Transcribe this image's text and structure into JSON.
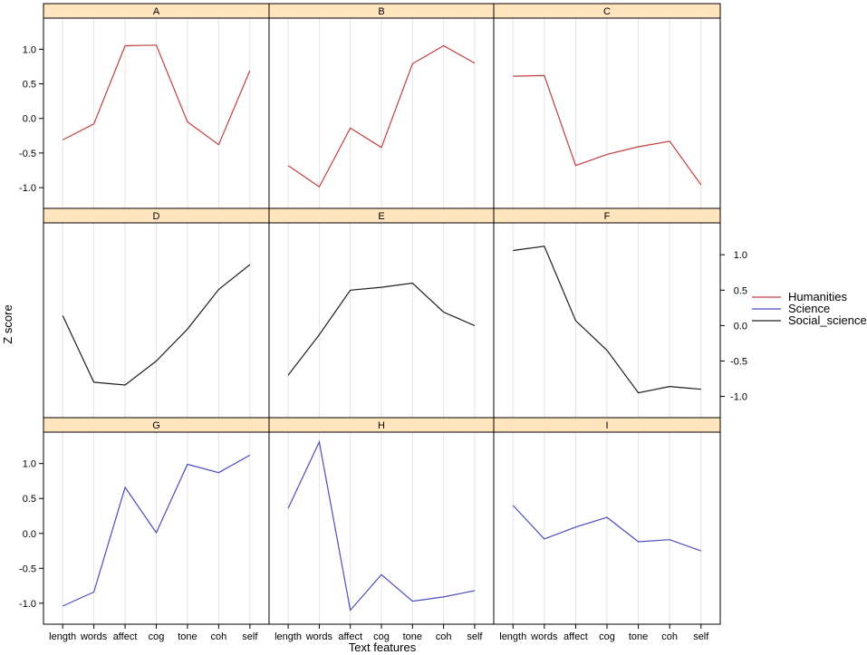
{
  "chart_data": {
    "type": "line",
    "xlabel": "Text features",
    "ylabel": "Z score",
    "categories": [
      "length",
      "words",
      "affect",
      "cog",
      "tone",
      "coh",
      "self"
    ],
    "ylim": [
      -1.3,
      1.45
    ],
    "yticks": [
      -1.0,
      -0.5,
      0.0,
      0.5,
      1.0
    ],
    "ytick_labels": [
      "-1.0",
      "-0.5",
      "0.0",
      "0.5",
      "1.0"
    ],
    "grid": "vertical",
    "legend": {
      "position": "right",
      "entries": [
        {
          "name": "Humanities",
          "color": "#c2403f"
        },
        {
          "name": "Science",
          "color": "#4c4cc0"
        },
        {
          "name": "Social_science",
          "color": "#202020"
        }
      ]
    },
    "colors": {
      "strip": "#ffe5be",
      "grid": "#e4e4e4",
      "frame": "#000000"
    },
    "panels": [
      {
        "label": "A",
        "series": "Humanities",
        "values": [
          -0.31,
          -0.08,
          1.05,
          1.06,
          -0.05,
          -0.38,
          0.69
        ]
      },
      {
        "label": "B",
        "series": "Humanities",
        "values": [
          -0.68,
          -0.99,
          -0.14,
          -0.42,
          0.79,
          1.05,
          0.8
        ]
      },
      {
        "label": "C",
        "series": "Humanities",
        "values": [
          0.61,
          0.62,
          -0.68,
          -0.52,
          -0.41,
          -0.33,
          -0.96
        ]
      },
      {
        "label": "D",
        "series": "Social_science",
        "values": [
          0.14,
          -0.8,
          -0.84,
          -0.5,
          -0.05,
          0.51,
          0.86
        ]
      },
      {
        "label": "E",
        "series": "Social_science",
        "values": [
          -0.7,
          -0.13,
          0.5,
          0.54,
          0.6,
          0.19,
          0.0
        ]
      },
      {
        "label": "F",
        "series": "Social_science",
        "values": [
          1.06,
          1.12,
          0.07,
          -0.35,
          -0.95,
          -0.86,
          -0.9
        ]
      },
      {
        "label": "G",
        "series": "Science",
        "values": [
          -1.04,
          -0.84,
          0.66,
          0.01,
          0.99,
          0.87,
          1.12
        ]
      },
      {
        "label": "H",
        "series": "Science",
        "values": [
          0.36,
          1.31,
          -1.1,
          -0.59,
          -0.97,
          -0.91,
          -0.82
        ]
      },
      {
        "label": "I",
        "series": "Science",
        "values": [
          0.4,
          -0.08,
          0.09,
          0.23,
          -0.12,
          -0.09,
          -0.25
        ]
      }
    ]
  }
}
